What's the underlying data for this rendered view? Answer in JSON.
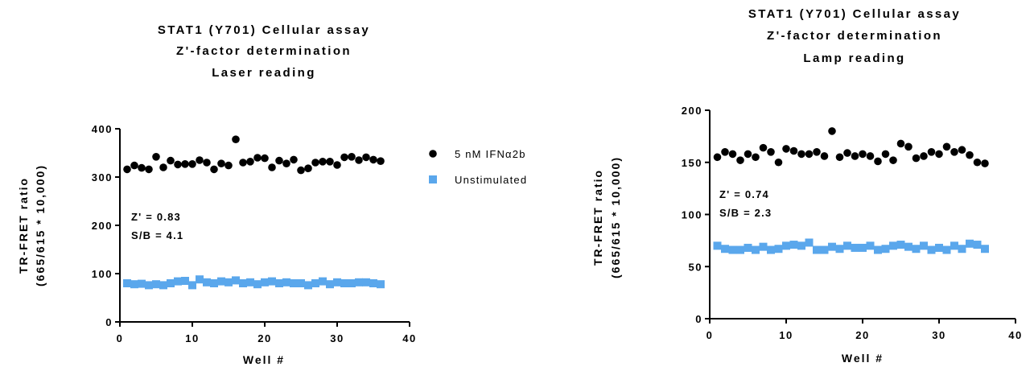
{
  "legend": [
    {
      "label": "5 nM IFNα2b",
      "marker": "circle",
      "color": "#000000"
    },
    {
      "label": "Unstimulated",
      "marker": "square",
      "color": "#5aa7ec"
    }
  ],
  "chart_data": [
    {
      "type": "scatter",
      "title": [
        "STAT1 (Y701) Cellular assay",
        "Z'-factor determination",
        "Laser reading"
      ],
      "xlabel": "Well #",
      "ylabel": [
        "TR-FRET ratio",
        "(665/615 * 10,000)"
      ],
      "xlim": [
        0,
        40
      ],
      "ylim": [
        0,
        400
      ],
      "xticks": [
        "0",
        "10",
        "20",
        "30",
        "40"
      ],
      "yticks": [
        "0",
        "100",
        "200",
        "300",
        "400"
      ],
      "annotations": [
        "Z' = 0.83",
        "S/B = 4.1"
      ],
      "series": [
        {
          "name": "5 nM IFNα2b",
          "marker": "circle",
          "x": [
            1,
            2,
            3,
            4,
            5,
            6,
            7,
            8,
            9,
            10,
            11,
            12,
            13,
            14,
            15,
            16,
            17,
            18,
            19,
            20,
            21,
            22,
            23,
            24,
            25,
            26,
            27,
            28,
            29,
            30,
            31,
            32,
            33,
            34,
            35,
            36
          ],
          "y": [
            316,
            324,
            319,
            316,
            342,
            320,
            334,
            326,
            327,
            327,
            335,
            330,
            316,
            328,
            324,
            378,
            330,
            332,
            340,
            339,
            320,
            334,
            328,
            336,
            314,
            318,
            330,
            332,
            332,
            325,
            341,
            342,
            335,
            341,
            336,
            333
          ]
        },
        {
          "name": "Unstimulated",
          "marker": "square",
          "x": [
            1,
            2,
            3,
            4,
            5,
            6,
            7,
            8,
            9,
            10,
            11,
            12,
            13,
            14,
            15,
            16,
            17,
            18,
            19,
            20,
            21,
            22,
            23,
            24,
            25,
            26,
            27,
            28,
            29,
            30,
            31,
            32,
            33,
            34,
            35,
            36
          ],
          "y": [
            80,
            78,
            79,
            76,
            78,
            76,
            80,
            84,
            85,
            76,
            88,
            82,
            80,
            84,
            82,
            86,
            80,
            82,
            78,
            82,
            84,
            80,
            82,
            80,
            80,
            76,
            80,
            84,
            78,
            82,
            80,
            80,
            82,
            82,
            80,
            78
          ]
        }
      ]
    },
    {
      "type": "scatter",
      "title": [
        "STAT1 (Y701) Cellular assay",
        "Z'-factor determination",
        "Lamp reading"
      ],
      "xlabel": "Well #",
      "ylabel": [
        "TR-FRET ratio",
        "(665/615 * 10,000)"
      ],
      "xlim": [
        0,
        40
      ],
      "ylim": [
        0,
        200
      ],
      "xticks": [
        "0",
        "10",
        "20",
        "30",
        "40"
      ],
      "yticks": [
        "0",
        "50",
        "100",
        "150",
        "200"
      ],
      "annotations": [
        "Z' = 0.74",
        "S/B = 2.3"
      ],
      "series": [
        {
          "name": "5 nM IFNα2b",
          "marker": "circle",
          "x": [
            1,
            2,
            3,
            4,
            5,
            6,
            7,
            8,
            9,
            10,
            11,
            12,
            13,
            14,
            15,
            16,
            17,
            18,
            19,
            20,
            21,
            22,
            23,
            24,
            25,
            26,
            27,
            28,
            29,
            30,
            31,
            32,
            33,
            34,
            35,
            36
          ],
          "y": [
            155,
            160,
            158,
            152,
            158,
            155,
            164,
            160,
            150,
            163,
            161,
            158,
            158,
            160,
            156,
            180,
            155,
            159,
            156,
            158,
            156,
            151,
            158,
            152,
            168,
            165,
            154,
            156,
            160,
            158,
            165,
            160,
            162,
            157,
            150,
            149
          ]
        },
        {
          "name": "Unstimulated",
          "marker": "square",
          "x": [
            1,
            2,
            3,
            4,
            5,
            6,
            7,
            8,
            9,
            10,
            11,
            12,
            13,
            14,
            15,
            16,
            17,
            18,
            19,
            20,
            21,
            22,
            23,
            24,
            25,
            26,
            27,
            28,
            29,
            30,
            31,
            32,
            33,
            34,
            35,
            36
          ],
          "y": [
            70,
            67,
            66,
            66,
            68,
            66,
            69,
            66,
            67,
            70,
            71,
            70,
            73,
            66,
            66,
            69,
            67,
            70,
            68,
            68,
            70,
            66,
            67,
            70,
            71,
            69,
            67,
            70,
            66,
            68,
            66,
            70,
            67,
            72,
            71,
            67
          ]
        }
      ]
    }
  ]
}
